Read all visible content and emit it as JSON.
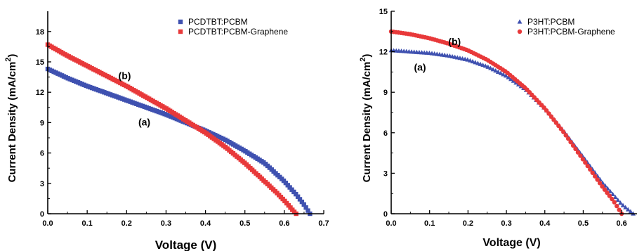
{
  "chart_data": [
    {
      "type": "scatter",
      "xlabel": "Voltage (V)",
      "ylabel": "Current Density (mA/cm",
      "ylabel_sup": "2",
      "ylabel_close": ")",
      "xlim": [
        0.0,
        0.7
      ],
      "ylim": [
        0,
        20
      ],
      "xticks": [
        0.0,
        0.1,
        0.2,
        0.3,
        0.4,
        0.5,
        0.6,
        0.7
      ],
      "xtick_labels": [
        "0.0",
        "0.1",
        "0.2",
        "0.3",
        "0.4",
        "0.5",
        "0.6",
        "0.7"
      ],
      "yticks": [
        0,
        3,
        6,
        9,
        12,
        15,
        18
      ],
      "ytick_labels": [
        "0",
        "3",
        "6",
        "9",
        "12",
        "15",
        "18"
      ],
      "grid": false,
      "legend_position": "top-right",
      "series": [
        {
          "name": "PCDTBT:PCBM",
          "color": "#3f51b0",
          "marker": "square",
          "x": [
            0.0,
            0.05,
            0.1,
            0.15,
            0.2,
            0.25,
            0.3,
            0.35,
            0.4,
            0.45,
            0.5,
            0.55,
            0.6,
            0.63,
            0.65,
            0.665
          ],
          "y": [
            14.3,
            13.4,
            12.6,
            11.9,
            11.2,
            10.5,
            9.8,
            9.0,
            8.2,
            7.3,
            6.2,
            5.0,
            3.2,
            1.9,
            0.9,
            0.0
          ]
        },
        {
          "name": "PCDTBT:PCBM-Graphene",
          "color": "#e8393a",
          "marker": "square",
          "x": [
            0.0,
            0.05,
            0.1,
            0.15,
            0.2,
            0.25,
            0.3,
            0.35,
            0.4,
            0.45,
            0.5,
            0.55,
            0.58,
            0.6,
            0.62,
            0.63
          ],
          "y": [
            16.7,
            15.6,
            14.6,
            13.6,
            12.6,
            11.5,
            10.4,
            9.2,
            8.0,
            6.6,
            5.0,
            3.2,
            2.1,
            1.3,
            0.4,
            0.0
          ]
        }
      ],
      "annotations": [
        {
          "text": "(a)",
          "x": 0.245,
          "y": 8.7
        },
        {
          "text": "(b)",
          "x": 0.195,
          "y": 13.3
        }
      ]
    },
    {
      "type": "scatter",
      "xlabel": "Voltage (V)",
      "ylabel": "Current Density (mA/cm",
      "ylabel_sup": "2",
      "ylabel_close": ")",
      "xlim": [
        0.0,
        0.64
      ],
      "ylim": [
        0,
        15
      ],
      "xticks": [
        0.0,
        0.1,
        0.2,
        0.3,
        0.4,
        0.5,
        0.6
      ],
      "xtick_labels": [
        "0.0",
        "0.1",
        "0.2",
        "0.3",
        "0.4",
        "0.5",
        "0.6"
      ],
      "yticks": [
        0,
        3,
        6,
        9,
        12,
        15
      ],
      "ytick_labels": [
        "0",
        "3",
        "6",
        "9",
        "12",
        "15"
      ],
      "grid": false,
      "legend_position": "top-right",
      "series": [
        {
          "name": "P3HT:PCBM",
          "color": "#3f51b0",
          "marker": "triangle",
          "x": [
            0.0,
            0.05,
            0.1,
            0.15,
            0.2,
            0.25,
            0.3,
            0.35,
            0.4,
            0.45,
            0.5,
            0.55,
            0.6,
            0.63
          ],
          "y": [
            12.1,
            12.0,
            11.9,
            11.7,
            11.4,
            10.9,
            10.2,
            9.2,
            7.8,
            6.1,
            4.2,
            2.3,
            0.7,
            0.0
          ]
        },
        {
          "name": "P3HT:PCBM-Graphene",
          "color": "#e8393a",
          "marker": "circle",
          "x": [
            0.0,
            0.05,
            0.1,
            0.15,
            0.2,
            0.25,
            0.3,
            0.35,
            0.4,
            0.45,
            0.5,
            0.55,
            0.58,
            0.6
          ],
          "y": [
            13.5,
            13.3,
            13.0,
            12.6,
            12.1,
            11.4,
            10.5,
            9.3,
            7.8,
            6.0,
            4.0,
            2.0,
            0.9,
            0.0
          ]
        }
      ],
      "annotations": [
        {
          "text": "(a)",
          "x": 0.075,
          "y": 10.6
        },
        {
          "text": "(b)",
          "x": 0.165,
          "y": 12.5
        }
      ]
    }
  ]
}
